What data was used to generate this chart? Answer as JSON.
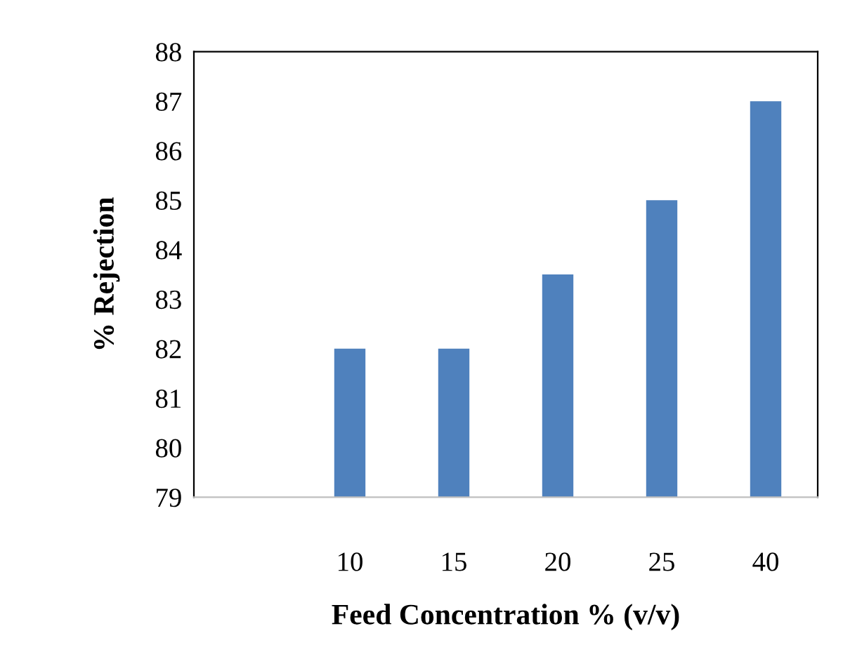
{
  "chart_data": {
    "type": "bar",
    "xlabel": "Feed Concentration % (v/v)",
    "ylabel": "% Rejection",
    "categories": [
      null,
      "10",
      "15",
      "20",
      "25",
      "40"
    ],
    "values": [
      null,
      82,
      82,
      83.5,
      85,
      87
    ],
    "color": "#4f81bd",
    "ylim": [
      79,
      88
    ],
    "yticks": [
      79,
      80,
      81,
      82,
      83,
      84,
      85,
      86,
      87,
      88
    ],
    "grid": false,
    "legend": false
  }
}
